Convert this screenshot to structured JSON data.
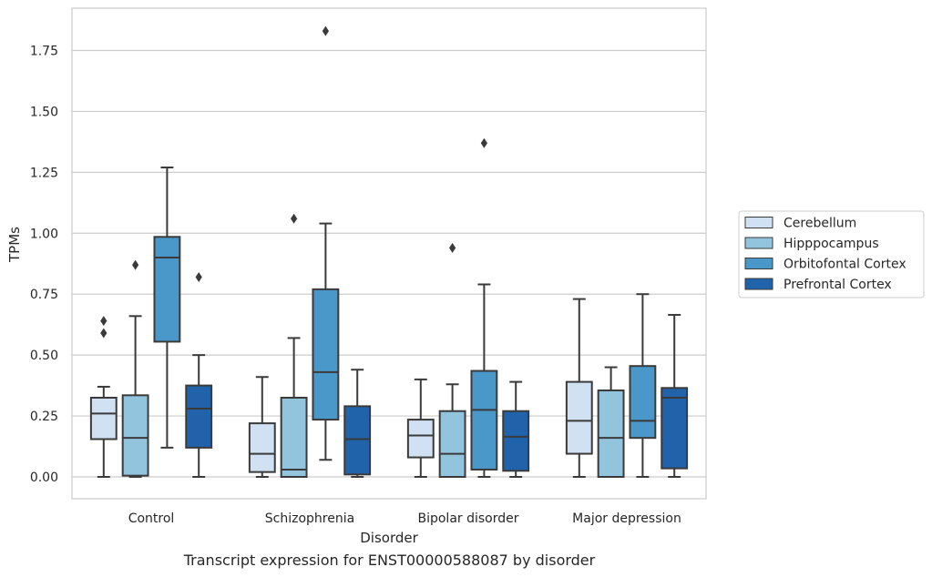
{
  "chart_data": {
    "type": "box",
    "title": "",
    "xlabel": "Disorder",
    "ylabel": "TPMs",
    "caption": "Transcript expression for ENST00000588087 by disorder",
    "ylim": [
      -0.09,
      1.93
    ],
    "yticks": [
      "0.00",
      "0.25",
      "0.50",
      "0.75",
      "1.00",
      "1.25",
      "1.50",
      "1.75"
    ],
    "categories": [
      "Control",
      "Schizophrenia",
      "Bipolar disorder",
      "Major depression"
    ],
    "grid": true,
    "legend_position": "right",
    "series": [
      {
        "name": "Cerebellum",
        "color": "#cfe1f2",
        "boxes": [
          {
            "whislo": 0.0,
            "q1": 0.155,
            "median": 0.26,
            "q3": 0.325,
            "whishi": 0.37,
            "fliers": [
              0.59,
              0.64
            ]
          },
          {
            "whislo": 0.0,
            "q1": 0.02,
            "median": 0.095,
            "q3": 0.22,
            "whishi": 0.41,
            "fliers": []
          },
          {
            "whislo": 0.0,
            "q1": 0.08,
            "median": 0.17,
            "q3": 0.235,
            "whishi": 0.4,
            "fliers": []
          },
          {
            "whislo": 0.0,
            "q1": 0.095,
            "median": 0.23,
            "q3": 0.39,
            "whishi": 0.73,
            "fliers": []
          }
        ]
      },
      {
        "name": "Hipppocampus",
        "color": "#93c4de",
        "boxes": [
          {
            "whislo": 0.0,
            "q1": 0.005,
            "median": 0.16,
            "q3": 0.335,
            "whishi": 0.66,
            "fliers": [
              0.87
            ]
          },
          {
            "whislo": 0.0,
            "q1": 0.0,
            "median": 0.03,
            "q3": 0.325,
            "whishi": 0.57,
            "fliers": [
              1.06
            ]
          },
          {
            "whislo": 0.0,
            "q1": 0.0,
            "median": 0.095,
            "q3": 0.27,
            "whishi": 0.38,
            "fliers": [
              0.94
            ]
          },
          {
            "whislo": 0.0,
            "q1": 0.0,
            "median": 0.16,
            "q3": 0.355,
            "whishi": 0.45,
            "fliers": []
          }
        ]
      },
      {
        "name": "Orbitofontal Cortex",
        "color": "#4a98c9",
        "boxes": [
          {
            "whislo": 0.12,
            "q1": 0.555,
            "median": 0.9,
            "q3": 0.985,
            "whishi": 1.27,
            "fliers": []
          },
          {
            "whislo": 0.07,
            "q1": 0.235,
            "median": 0.43,
            "q3": 0.77,
            "whishi": 1.04,
            "fliers": [
              1.83
            ]
          },
          {
            "whislo": 0.0,
            "q1": 0.03,
            "median": 0.275,
            "q3": 0.435,
            "whishi": 0.79,
            "fliers": [
              1.37
            ]
          },
          {
            "whislo": 0.0,
            "q1": 0.16,
            "median": 0.23,
            "q3": 0.455,
            "whishi": 0.75,
            "fliers": []
          }
        ]
      },
      {
        "name": "Prefrontal Cortex",
        "color": "#2163aa",
        "boxes": [
          {
            "whislo": 0.0,
            "q1": 0.12,
            "median": 0.28,
            "q3": 0.375,
            "whishi": 0.5,
            "fliers": [
              0.82
            ]
          },
          {
            "whislo": 0.0,
            "q1": 0.01,
            "median": 0.155,
            "q3": 0.29,
            "whishi": 0.44,
            "fliers": []
          },
          {
            "whislo": 0.0,
            "q1": 0.025,
            "median": 0.165,
            "q3": 0.27,
            "whishi": 0.39,
            "fliers": []
          },
          {
            "whislo": 0.0,
            "q1": 0.035,
            "median": 0.325,
            "q3": 0.365,
            "whishi": 0.665,
            "fliers": []
          }
        ]
      }
    ]
  }
}
